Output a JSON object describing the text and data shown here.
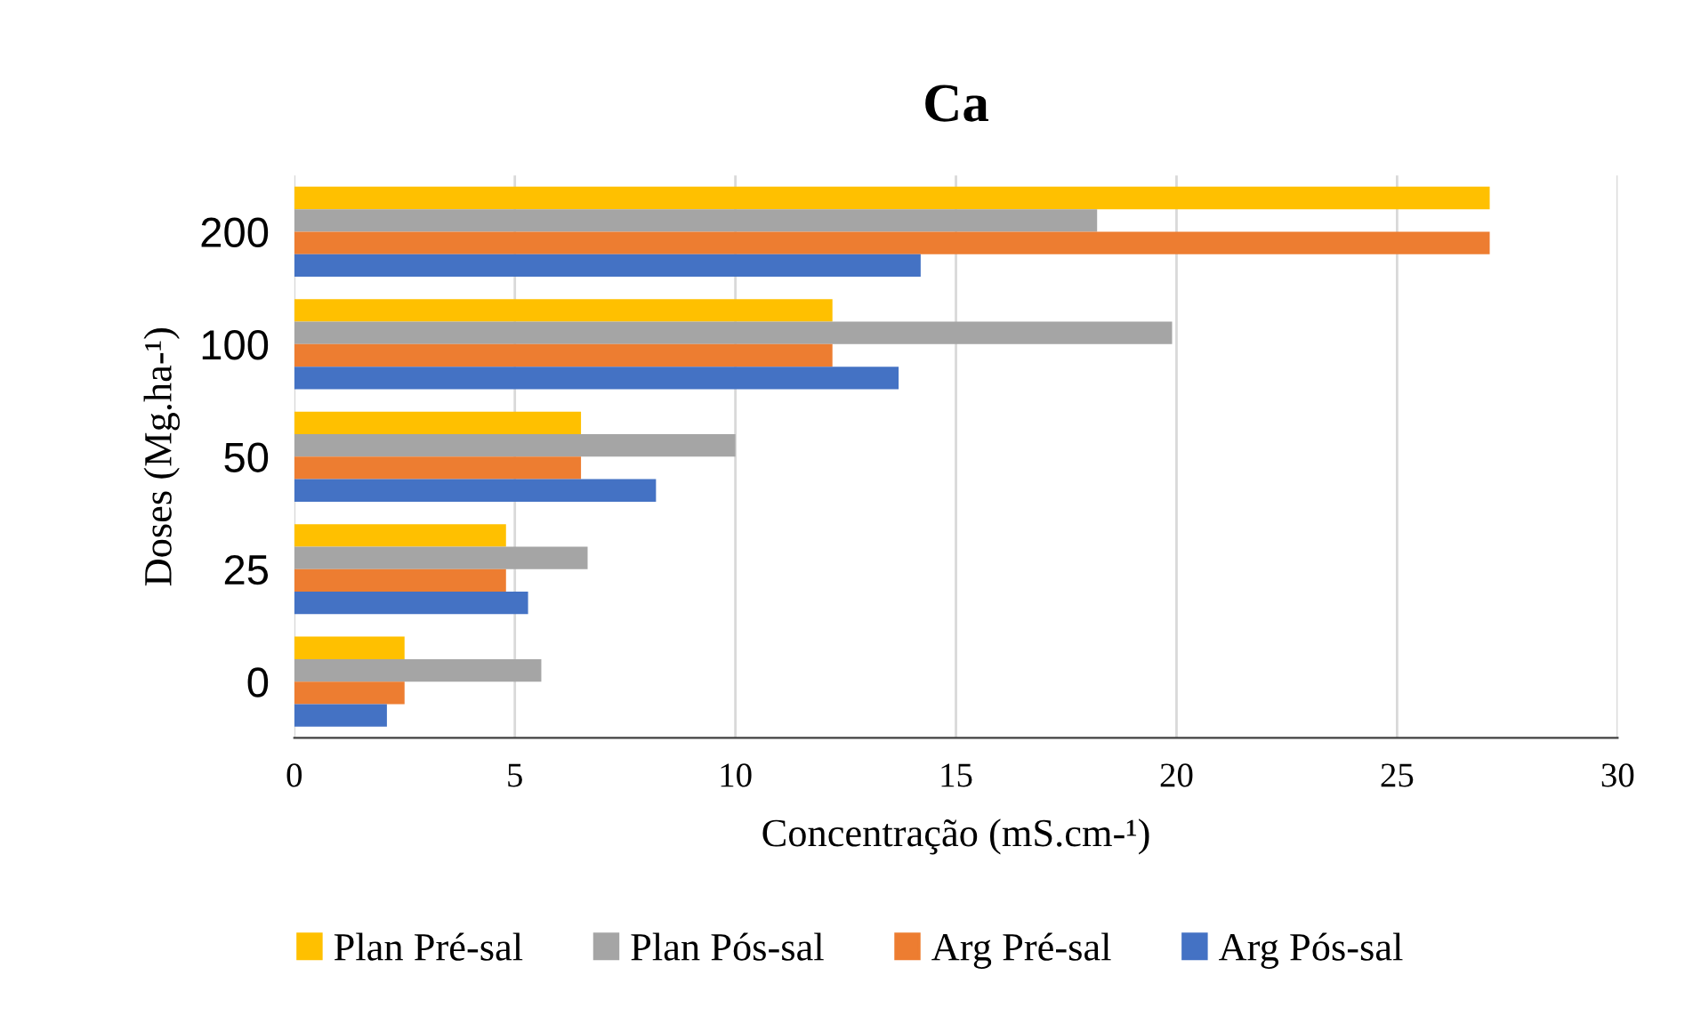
{
  "chart_data": {
    "type": "bar",
    "orientation": "horizontal",
    "title": "Ca",
    "xlabel": "Concentração (mS.cm-¹)",
    "ylabel": "Doses (Mg.ha-¹)",
    "categories": [
      "200",
      "100",
      "50",
      "25",
      "0"
    ],
    "series": [
      {
        "name": "Plan Pré-sal",
        "color": "#ffc000",
        "values": [
          27.1,
          12.2,
          6.5,
          4.8,
          2.5
        ]
      },
      {
        "name": "Plan Pós-sal",
        "color": "#a5a5a5",
        "values": [
          18.2,
          19.9,
          10.0,
          6.65,
          5.6
        ]
      },
      {
        "name": "Arg Pré-sal",
        "color": "#ed7d31",
        "values": [
          27.1,
          12.2,
          6.5,
          4.8,
          2.5
        ]
      },
      {
        "name": "Arg Pós-sal",
        "color": "#4472c4",
        "values": [
          14.2,
          13.7,
          8.2,
          5.3,
          2.1
        ]
      }
    ],
    "xlim": [
      0,
      30
    ],
    "xticks": [
      0,
      5,
      10,
      15,
      20,
      25,
      30
    ],
    "grid": "x",
    "legend": "bottom"
  }
}
